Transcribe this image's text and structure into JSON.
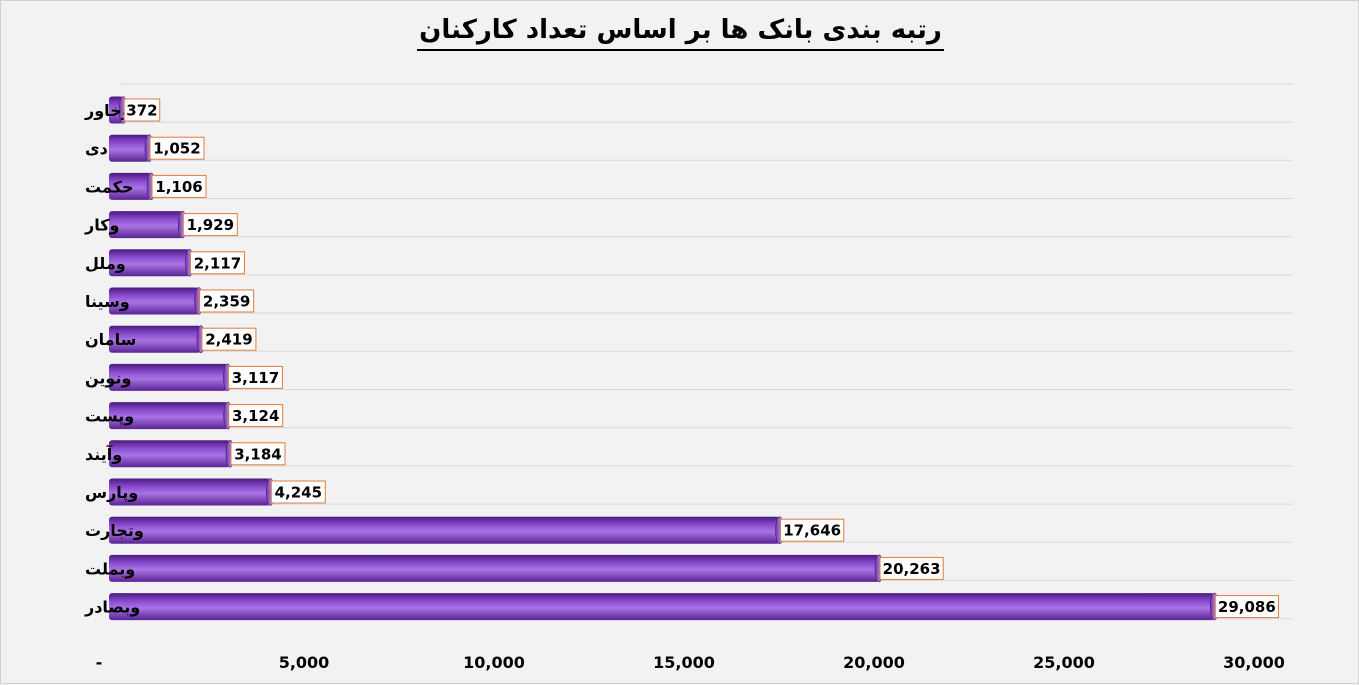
{
  "chart_data": {
    "type": "bar",
    "orientation": "horizontal",
    "title": "رتبه بندی بانک ها بر اساس تعداد کارکنان",
    "categories": [
      "وخاور",
      "دی",
      "حکمت",
      "وکار",
      "وملل",
      "وسینا",
      "سامان",
      "ونوین",
      "وپست",
      "وآیند",
      "وپارس",
      "وتجارت",
      "وبملت",
      "وبصادر"
    ],
    "values": [
      372,
      1052,
      1106,
      1929,
      2117,
      2359,
      2419,
      3117,
      3124,
      3184,
      4245,
      17646,
      20263,
      29086
    ],
    "value_labels": [
      "372",
      "1,052",
      "1,106",
      "1,929",
      "2,117",
      "2,359",
      "2,419",
      "3,117",
      "3,124",
      "3,184",
      "4,245",
      "17,646",
      "20,263",
      "29,086"
    ],
    "xlim": [
      0,
      30000
    ],
    "x_ticks": [
      0,
      5000,
      10000,
      15000,
      20000,
      25000,
      30000
    ],
    "x_tick_labels": [
      "-",
      "5,000",
      "10,000",
      "15,000",
      "20,000",
      "25,000",
      "30,000"
    ],
    "grid": true,
    "legend": "none",
    "colors": {
      "bar_dark": "#4a1a7e",
      "bar_mid": "#8a4bd0",
      "bar_light": "#a874e2",
      "bar_cap": "#c9a6ef",
      "label_border": "#e07b39",
      "grid": "#d9d9d9"
    }
  }
}
